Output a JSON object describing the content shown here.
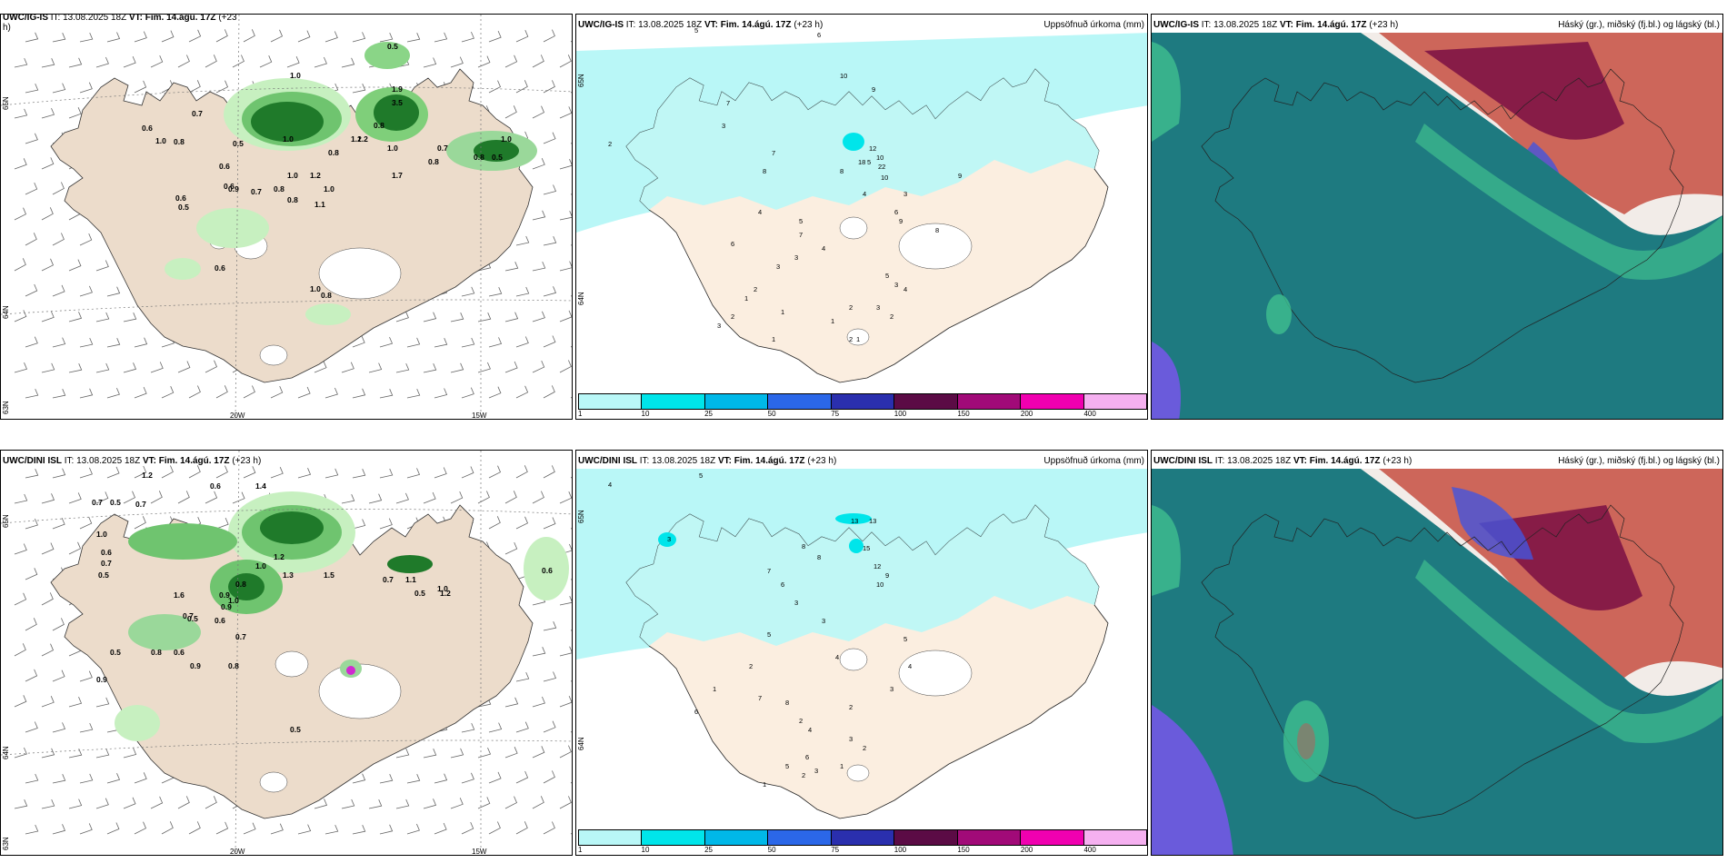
{
  "panels": {
    "p1": {
      "title_model": "UWC/IG-IS",
      "title_rest": " IT: 13.08.2025 18Z ",
      "title_vt": "VT: Fim. 14.ágú. 17Z",
      "title_lead": " (+23",
      "title_wrap": "h)"
    },
    "p2": {
      "title_model": "UWC/IG-IS",
      "title_rest": " IT: 13.08.2025 18Z ",
      "title_vt": "VT: Fim. 14.ágú. 17Z",
      "title_lead": " (+23 h)",
      "right_title": "Uppsöfnuð úrkoma (mm)"
    },
    "p3": {
      "title_model": "UWC/IG-IS",
      "title_rest": " IT: 13.08.2025 18Z ",
      "title_vt": "VT: Fim. 14.ágú. 17Z",
      "title_lead": " (+23 h)",
      "right_title": "Háský (gr.), miðský (fj.bl.) og lágský (bl.)"
    },
    "p4": {
      "title_model": "UWC/DINI ISL",
      "title_rest": " IT: 13.08.2025 18Z ",
      "title_vt": "VT: Fim. 14.ágú. 17Z",
      "title_lead": " (+23 h)"
    },
    "p5": {
      "title_model": "UWC/DINI ISL",
      "title_rest": " IT: 13.08.2025 18Z ",
      "title_vt": "VT: Fim. 14.ágú. 17Z",
      "title_lead": " (+23 h)",
      "right_title": "Uppsöfnuð úrkoma (mm)"
    },
    "p6": {
      "title_model": "UWC/DINI ISL",
      "title_rest": " IT: 13.08.2025 18Z ",
      "title_vt": "VT: Fim. 14.ágú. 17Z",
      "title_lead": " (+23 h)",
      "right_title": "Háský (gr.), miðský (fj.bl.) og lágský (bl.)"
    }
  },
  "axis": {
    "lat_65": "65N",
    "lat_64": "64N",
    "lat_63": "63N",
    "lon_20": "20W",
    "lon_15": "15W"
  },
  "colorbar": {
    "ticks": [
      "1",
      "10",
      "25",
      "50",
      "75",
      "100",
      "150",
      "200",
      "400"
    ],
    "colors": [
      "#b9f7f7",
      "#00e5ea",
      "#00b8e8",
      "#2b67e8",
      "#2a2fae",
      "#5b0b45",
      "#a10a78",
      "#f000b0",
      "#f5b0f0"
    ]
  },
  "p1_values": [
    "0.5",
    "1.0",
    "0.7",
    "0.6",
    "1.0",
    "0.8",
    "1.9",
    "3.5",
    "0.8",
    "0.5",
    "1.0",
    "0.6",
    "1.2",
    "0.8",
    "0.6",
    "0.9",
    "0.7",
    "0.8",
    "0.6",
    "0.5",
    "1.0",
    "0.8",
    "1.2",
    "1.7",
    "0.7",
    "1.0",
    "0.8",
    "0.5",
    "1.0",
    "0.8",
    "1.2",
    "1.1",
    "1.0",
    "0.6",
    "1.0",
    "0.8"
  ],
  "p4_values": [
    "1.2",
    "0.6",
    "0.7",
    "0.5",
    "0.7",
    "1.0",
    "1.4",
    "0.6",
    "0.7",
    "1.2",
    "0.5",
    "1.0",
    "1.6",
    "0.8",
    "0.9",
    "1.0",
    "0.7",
    "0.5",
    "0.9",
    "0.6",
    "0.7",
    "0.8",
    "0.6",
    "0.9",
    "0.5",
    "0.8",
    "0.9",
    "1.5",
    "1.3",
    "0.7",
    "1.1",
    "1.0",
    "0.5",
    "1.2",
    "0.6",
    "0.5"
  ],
  "p2_values": [
    "5",
    "6",
    "10",
    "7",
    "9",
    "3",
    "2",
    "7",
    "8",
    "5",
    "10",
    "10",
    "4",
    "3",
    "6",
    "12",
    "8",
    "9",
    "9",
    "18",
    "22",
    "4",
    "5",
    "6",
    "8",
    "7",
    "3",
    "4",
    "3",
    "2",
    "1",
    "5",
    "3",
    "4",
    "2",
    "3",
    "2",
    "1",
    "1",
    "2",
    "3",
    "1",
    "2",
    "1"
  ],
  "p5_values": [
    "4",
    "5",
    "3",
    "13",
    "13",
    "15",
    "12",
    "9",
    "10",
    "8",
    "8",
    "6",
    "7",
    "3",
    "5",
    "4",
    "2",
    "3",
    "1",
    "6",
    "5",
    "4",
    "3",
    "2",
    "7",
    "8",
    "2",
    "4",
    "3",
    "2",
    "1",
    "3",
    "2",
    "1",
    "5",
    "6"
  ]
}
